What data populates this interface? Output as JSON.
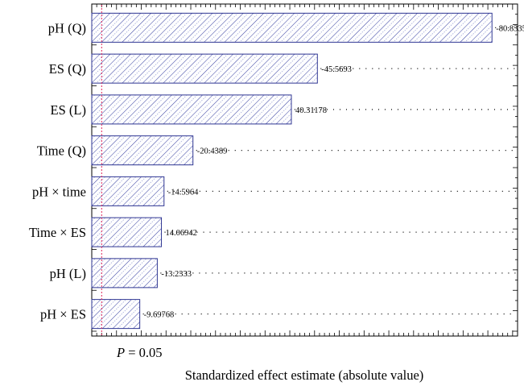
{
  "chart_data": {
    "type": "bar",
    "orientation": "horizontal",
    "title": "",
    "xlabel": "Standardized effect estimate (absolute value)",
    "ylabel": "",
    "categories": [
      "pH (Q)",
      "ES (Q)",
      "ES (L)",
      "Time (Q)",
      "pH × time",
      "Time × ES",
      "pH (L)",
      "pH × ES"
    ],
    "values": [
      80.8335,
      45.5693,
      40.31178,
      20.4389,
      14.5964,
      14.06942,
      13.2333,
      9.69768
    ],
    "value_labels": [
      "-80.8335",
      "-45.5693",
      "40.31178",
      "-20.4389",
      "-14.5964",
      "14.06942",
      "-13.2333",
      "-9.69768"
    ],
    "xlim": [
      0,
      86
    ],
    "reference_line": {
      "value": 2.0,
      "label": "P = 0.05",
      "color": "#e0245a"
    },
    "bar_fill": "#ffffff",
    "bar_hatch_color": "#3f48a5",
    "bar_stroke": "#2e3592",
    "grid": "dotted reference lines from bar ends"
  }
}
